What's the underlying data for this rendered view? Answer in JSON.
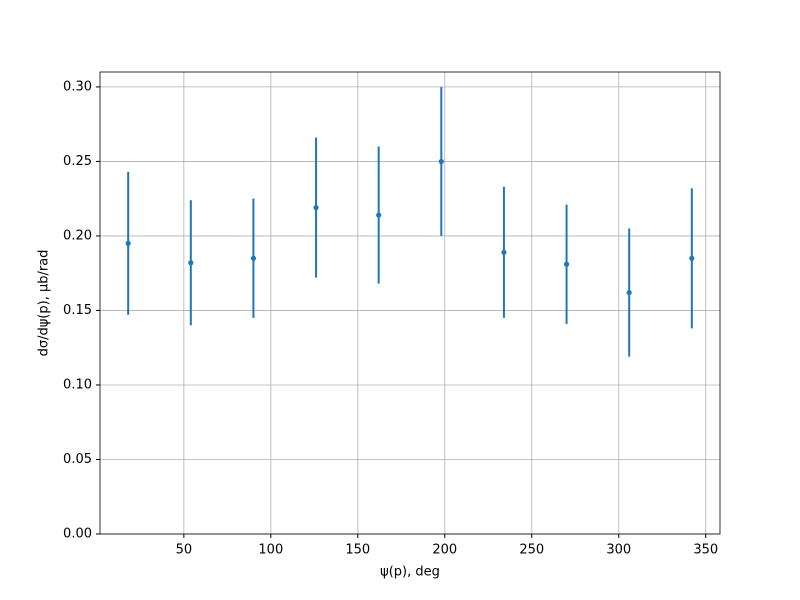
{
  "chart_data": {
    "type": "errorbar",
    "xlabel": "ψ(p), deg",
    "ylabel": "dσ/dψ(p), μb/rad",
    "x": [
      18,
      54,
      90,
      126,
      162,
      198,
      234,
      270,
      306,
      342
    ],
    "series": [
      {
        "color": "#1f77b4",
        "values": [
          0.195,
          0.182,
          0.185,
          0.219,
          0.214,
          0.25,
          0.189,
          0.181,
          0.162,
          0.185
        ],
        "errors": [
          0.048,
          0.042,
          0.04,
          0.047,
          0.046,
          0.05,
          0.044,
          0.04,
          0.043,
          0.047
        ]
      }
    ],
    "xlim": [
      1.8,
      358.2
    ],
    "ylim": [
      0,
      0.31
    ],
    "xticks": [
      50,
      100,
      150,
      200,
      250,
      300,
      350
    ],
    "yticks": [
      {
        "value": 0,
        "label": "0.00"
      },
      {
        "value": 0.05,
        "label": "0.05"
      },
      {
        "value": 0.1,
        "label": "0.10"
      },
      {
        "value": 0.15,
        "label": "0.15"
      },
      {
        "value": 0.2,
        "label": "0.20"
      },
      {
        "value": 0.25,
        "label": "0.25"
      },
      {
        "value": 0.3,
        "label": "0.30"
      }
    ],
    "grid": true
  }
}
